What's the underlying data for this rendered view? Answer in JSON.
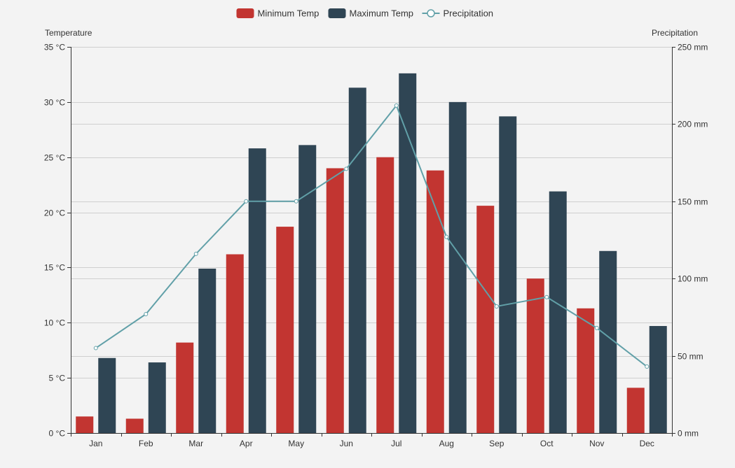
{
  "chart_data": {
    "type": "bar",
    "categories": [
      "Jan",
      "Feb",
      "Mar",
      "Apr",
      "May",
      "Jun",
      "Jul",
      "Aug",
      "Sep",
      "Oct",
      "Nov",
      "Dec"
    ],
    "series": [
      {
        "name": "Minimum Temp",
        "type": "bar",
        "axis": "left",
        "color": "#c23531",
        "values": [
          1.5,
          1.3,
          8.2,
          16.2,
          18.7,
          24.0,
          25.0,
          23.8,
          20.6,
          14.0,
          11.3,
          4.1
        ]
      },
      {
        "name": "Maximum Temp",
        "type": "bar",
        "axis": "left",
        "color": "#2f4554",
        "values": [
          6.8,
          6.4,
          14.9,
          25.8,
          26.1,
          31.3,
          32.6,
          30.0,
          28.7,
          21.9,
          16.5,
          9.7
        ]
      },
      {
        "name": "Precipitation",
        "type": "line",
        "axis": "right",
        "color": "#61a0a8",
        "values": [
          55,
          77,
          116,
          150,
          150,
          171,
          212,
          127,
          82,
          88,
          68,
          43
        ]
      }
    ],
    "y_left": {
      "label": "Temperature",
      "unit": " °C",
      "min": 0,
      "max": 35,
      "ticks": [
        0,
        5,
        10,
        15,
        20,
        25,
        30,
        35
      ]
    },
    "y_right": {
      "label": "Precipitation",
      "unit": " mm",
      "min": 0,
      "max": 250,
      "ticks": [
        0,
        50,
        100,
        150,
        200,
        250
      ]
    },
    "grid": true,
    "legend_position": "top-center"
  }
}
